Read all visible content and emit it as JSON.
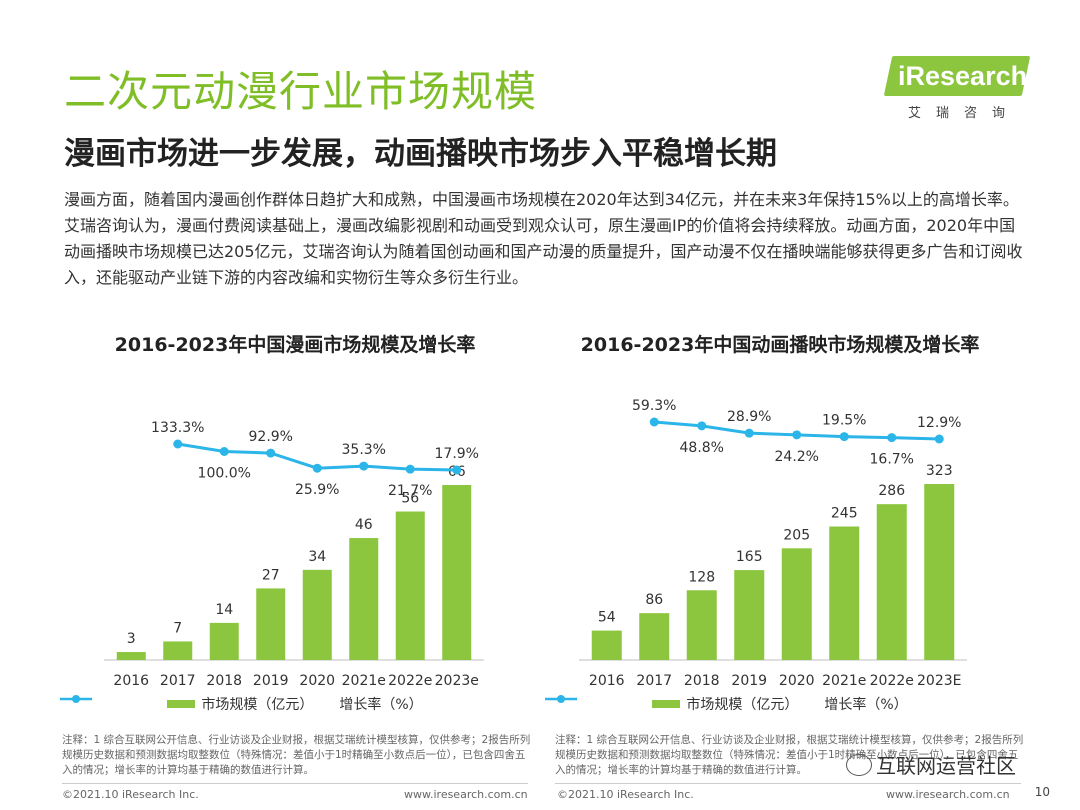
{
  "header": {
    "title": "二次元动漫行业市场规模",
    "subtitle": "漫画市场进一步发展，动画播映市场步入平稳增长期",
    "intro": "漫画方面，随着国内漫画创作群体日趋扩大和成熟，中国漫画市场规模在2020年达到34亿元，并在未来3年保持15%以上的高增长率。艾瑞咨询认为，漫画付费阅读基础上，漫画改编影视剧和动画受到观众认可，原生漫画IP的价值将会持续释放。动画方面，2020年中国动画播映市场规模已达205亿元，艾瑞咨询认为随着国创动画和国产动漫的质量提升，国产动漫不仅在播映端能够获得更多广告和订阅收入，还能驱动产业链下游的内容改编和实物衍生等众多衍生行业。"
  },
  "logo": {
    "text": "iResearch",
    "cn": "艾瑞咨询"
  },
  "chart_data": [
    {
      "type": "bar",
      "title": "2016-2023年中国漫画市场规模及增长率",
      "categories": [
        "2016",
        "2017",
        "2018",
        "2019",
        "2020",
        "2021e",
        "2022e",
        "2023e"
      ],
      "series": [
        {
          "name": "市场规模（亿元）",
          "type": "bar",
          "values": [
            3,
            7,
            14,
            27,
            34,
            46,
            56,
            66
          ],
          "labels": [
            "3",
            "7",
            "14",
            "27",
            "34",
            "46",
            "56",
            "66"
          ]
        },
        {
          "name": "增长率（%）",
          "type": "line",
          "values": [
            null,
            133.3,
            100.0,
            92.9,
            25.9,
            35.3,
            21.7,
            17.9
          ],
          "labels": [
            "",
            "133.3%",
            "100.0%",
            "92.9%",
            "25.9%",
            "35.3%",
            "21.7%",
            "17.9%"
          ]
        }
      ],
      "legend": [
        "市场规模（亿元）",
        "增长率（%）"
      ]
    },
    {
      "type": "bar",
      "title": "2016-2023年中国动画播映市场规模及增长率",
      "categories": [
        "2016",
        "2017",
        "2018",
        "2019",
        "2020",
        "2021e",
        "2022e",
        "2023E"
      ],
      "series": [
        {
          "name": "市场规模（亿元）",
          "type": "bar",
          "values": [
            54,
            86,
            128,
            165,
            205,
            245,
            286,
            323
          ],
          "labels": [
            "54",
            "86",
            "128",
            "165",
            "205",
            "245",
            "286",
            "323"
          ]
        },
        {
          "name": "增长率（%）",
          "type": "line",
          "values": [
            null,
            59.3,
            48.8,
            28.9,
            24.2,
            19.5,
            16.7,
            12.9
          ],
          "labels": [
            "",
            "59.3%",
            "48.8%",
            "28.9%",
            "24.2%",
            "19.5%",
            "16.7%",
            "12.9%"
          ]
        }
      ],
      "legend": [
        "市场规模（亿元）",
        "增长率（%）"
      ]
    }
  ],
  "notes": {
    "left": "注释：1 综合互联网公开信息、行业访谈及企业财报，根据艾瑞统计模型核算，仅供参考；2报告所列规模历史数据和预测数据均取整数位（特殊情况：差值小于1时精确至小数点后一位），已包含四舍五入的情况；增长率的计算均基于精确的数值进行计算。",
    "right": "注释：1 综合互联网公开信息、行业访谈及企业财报，根据艾瑞统计模型核算，仅供参考；2报告所列规模历史数据和预测数据均取整数位（特殊情况：差值小于1时精确至小数点后一位），已包含四舍五入的情况；增长率的计算均基于精确的数值进行计算。"
  },
  "footer": {
    "copyright_left": "©2021.10 iResearch Inc.",
    "url_left": "www.iresearch.com.cn",
    "copyright_right": "©2021.10 iResearch Inc.",
    "url_right": "www.iresearch.com.cn",
    "page": "10",
    "watermark": "互联网运营社区"
  },
  "colors": {
    "bar": "#8cc63f",
    "line": "#2bb5e8",
    "title": "#7fbe26"
  }
}
